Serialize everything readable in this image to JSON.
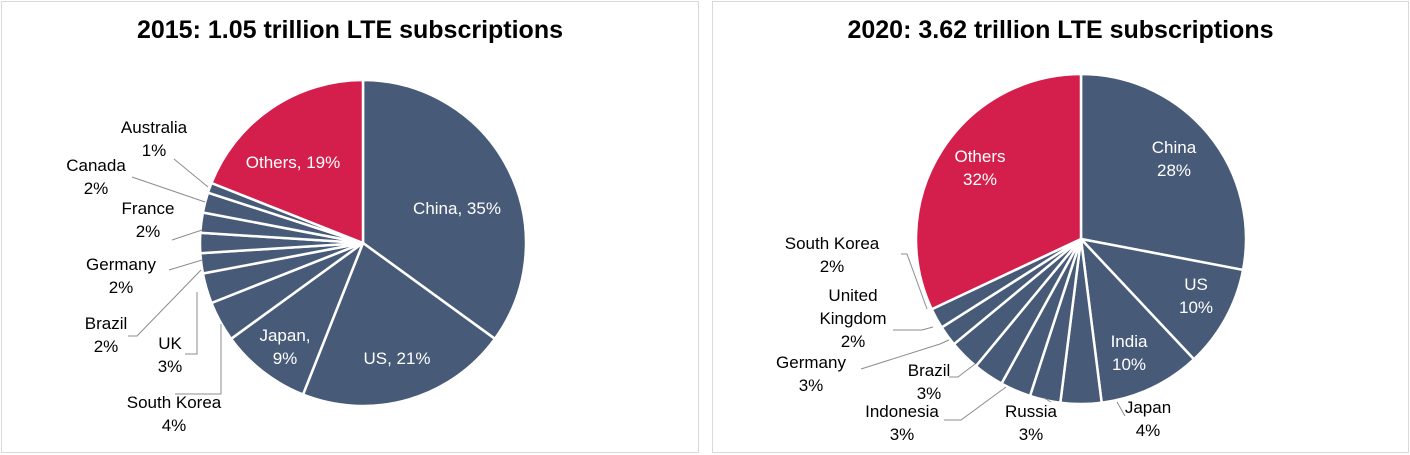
{
  "colors": {
    "main": "#475a78",
    "others": "#d41f4c",
    "edge": "#ffffff",
    "leader": "#8c8c8c",
    "text_dark": "#000000",
    "text_light": "#ffffff"
  },
  "chart_data": [
    {
      "type": "pie",
      "title": "2015: 1.05 trillion LTE subscriptions",
      "slices": [
        {
          "label": "China",
          "value": 35,
          "value_label": "35%",
          "color": "#475a78"
        },
        {
          "label": "US",
          "value": 21,
          "value_label": "21%",
          "color": "#475a78"
        },
        {
          "label": "Japan",
          "value": 9,
          "value_label": "9%",
          "color": "#475a78"
        },
        {
          "label": "South Korea",
          "value": 4,
          "value_label": "4%",
          "color": "#475a78"
        },
        {
          "label": "UK",
          "value": 3,
          "value_label": "3%",
          "color": "#475a78"
        },
        {
          "label": "Brazil",
          "value": 2,
          "value_label": "2%",
          "color": "#475a78"
        },
        {
          "label": "Germany",
          "value": 2,
          "value_label": "2%",
          "color": "#475a78"
        },
        {
          "label": "France",
          "value": 2,
          "value_label": "2%",
          "color": "#475a78"
        },
        {
          "label": "Canada",
          "value": 2,
          "value_label": "2%",
          "color": "#475a78"
        },
        {
          "label": "Australia",
          "value": 1,
          "value_label": "1%",
          "color": "#475a78"
        },
        {
          "label": "Others",
          "value": 19,
          "value_label": "19%",
          "color": "#d41f4c"
        }
      ]
    },
    {
      "type": "pie",
      "title": "2020: 3.62 trillion LTE subscriptions",
      "slices": [
        {
          "label": "China",
          "value": 28,
          "value_label": "28%",
          "color": "#475a78"
        },
        {
          "label": "US",
          "value": 10,
          "value_label": "10%",
          "color": "#475a78"
        },
        {
          "label": "India",
          "value": 10,
          "value_label": "10%",
          "color": "#475a78"
        },
        {
          "label": "Japan",
          "value": 4,
          "value_label": "4%",
          "color": "#475a78"
        },
        {
          "label": "Russia",
          "value": 3,
          "value_label": "3%",
          "color": "#475a78"
        },
        {
          "label": "Indonesia",
          "value": 3,
          "value_label": "3%",
          "color": "#475a78"
        },
        {
          "label": "Brazil",
          "value": 3,
          "value_label": "3%",
          "color": "#475a78"
        },
        {
          "label": "Germany",
          "value": 3,
          "value_label": "3%",
          "color": "#475a78"
        },
        {
          "label": "United Kingdom",
          "value": 2,
          "value_label": "2%",
          "color": "#475a78"
        },
        {
          "label": "South Korea",
          "value": 2,
          "value_label": "2%",
          "color": "#475a78"
        },
        {
          "label": "Others",
          "value": 32,
          "value_label": "32%",
          "color": "#d41f4c"
        }
      ]
    }
  ]
}
